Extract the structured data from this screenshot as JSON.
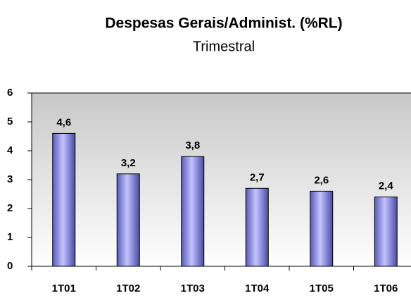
{
  "chart_data": {
    "type": "bar",
    "title": "Despesas Gerais/Administ. (%RL)",
    "subtitle": "Trimestral",
    "categories": [
      "1T01",
      "1T02",
      "1T03",
      "1T04",
      "1T05",
      "1T06"
    ],
    "values": [
      4.6,
      3.2,
      3.8,
      2.7,
      2.6,
      2.4
    ],
    "value_labels": [
      "4,6",
      "3,2",
      "3,8",
      "2,7",
      "2,6",
      "2,4"
    ],
    "color": "#9999ff",
    "ylim": [
      0,
      6
    ],
    "yticks": [
      0,
      1,
      2,
      3,
      4,
      5,
      6
    ],
    "grid": false
  }
}
